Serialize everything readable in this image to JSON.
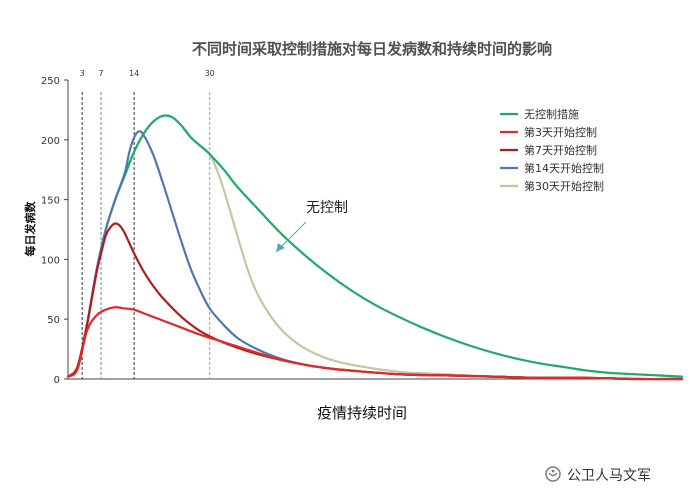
{
  "chart_data": {
    "type": "line",
    "title": "不同时间采取控制措施对每日发病数和持续时间的影响",
    "xlabel": "疫情持续时间",
    "ylabel": "每日发病数",
    "ylim": [
      0,
      250
    ],
    "yticks": [
      "0",
      "50",
      "100",
      "150",
      "200",
      "250"
    ],
    "xlim": [
      0,
      130
    ],
    "grid": false,
    "legend_position": "top-right",
    "vertical_markers": [
      {
        "label": "3",
        "x": 3,
        "color": "#333333"
      },
      {
        "label": "7",
        "x": 7,
        "color": "#5b8db5"
      },
      {
        "label": "14",
        "x": 14,
        "color": "#333333"
      },
      {
        "label": "30",
        "x": 30,
        "color": "#9aa88a"
      }
    ],
    "series": [
      {
        "name": "无控制措施",
        "color": "#1faa6a",
        "x": [
          0,
          2,
          4,
          6,
          8,
          10,
          12,
          14,
          16,
          18,
          20,
          22,
          24,
          26,
          28,
          30,
          33,
          36,
          40,
          45,
          50,
          55,
          60,
          65,
          70,
          75,
          80,
          85,
          90,
          95,
          100,
          105,
          110,
          115,
          120,
          125,
          130
        ],
        "values": [
          2,
          10,
          45,
          90,
          125,
          150,
          170,
          190,
          205,
          215,
          220,
          219,
          212,
          202,
          195,
          188,
          175,
          160,
          143,
          122,
          104,
          88,
          74,
          62,
          52,
          43,
          35,
          28,
          22,
          17,
          13,
          10,
          7,
          5,
          4,
          3,
          2
        ]
      },
      {
        "name": "第3天开始控制",
        "color": "#dc2b2b",
        "x": [
          0,
          2,
          4,
          6,
          8,
          10,
          12,
          14,
          16,
          18,
          20,
          24,
          28,
          32,
          36,
          40,
          45,
          50,
          55,
          60,
          70,
          80,
          90,
          100,
          110,
          120,
          130
        ],
        "values": [
          2,
          8,
          40,
          53,
          58,
          60,
          59,
          58,
          55,
          52,
          49,
          43,
          37,
          32,
          27,
          22,
          16,
          12,
          9,
          7,
          4,
          3,
          2,
          1,
          1,
          0,
          0
        ]
      },
      {
        "name": "第7天开始控制",
        "color": "#b01c1c",
        "x": [
          0,
          2,
          4,
          6,
          7,
          8,
          9,
          10,
          11,
          12,
          14,
          16,
          18,
          20,
          24,
          28,
          32,
          36,
          40,
          45,
          50,
          55,
          60,
          70,
          80,
          90,
          100,
          110,
          120,
          130
        ],
        "values": [
          2,
          10,
          45,
          88,
          105,
          120,
          127,
          130,
          128,
          122,
          105,
          90,
          78,
          68,
          52,
          40,
          32,
          26,
          21,
          16,
          12,
          9,
          7,
          4,
          3,
          2,
          1,
          1,
          0,
          0
        ]
      },
      {
        "name": "第14天开始控制",
        "color": "#4f77b0",
        "x": [
          0,
          2,
          4,
          6,
          8,
          10,
          12,
          13,
          14,
          15,
          16,
          18,
          20,
          22,
          24,
          26,
          28,
          30,
          33,
          36,
          40,
          45,
          50,
          55,
          60,
          70,
          80,
          90,
          100,
          110,
          120,
          130
        ],
        "values": [
          2,
          10,
          45,
          90,
          125,
          150,
          172,
          190,
          202,
          207,
          204,
          188,
          165,
          140,
          115,
          92,
          74,
          59,
          45,
          34,
          25,
          17,
          12,
          9,
          7,
          4,
          3,
          2,
          1,
          1,
          0,
          0
        ]
      },
      {
        "name": "第30天开始控制",
        "color": "#c5c79d",
        "x": [
          0,
          2,
          4,
          6,
          8,
          10,
          12,
          14,
          16,
          18,
          20,
          22,
          24,
          26,
          28,
          30,
          32,
          34,
          36,
          38,
          40,
          43,
          46,
          50,
          55,
          60,
          70,
          80,
          90,
          100,
          110,
          120,
          130
        ],
        "values": [
          2,
          10,
          45,
          90,
          125,
          150,
          170,
          190,
          205,
          215,
          220,
          219,
          212,
          202,
          195,
          188,
          170,
          145,
          118,
          92,
          72,
          52,
          38,
          26,
          17,
          12,
          6,
          4,
          2,
          1,
          1,
          0,
          0
        ]
      }
    ],
    "annotations": [
      {
        "text": "无控制",
        "points_to": "无控制措施",
        "at_x": 44
      }
    ]
  },
  "watermark": {
    "text": "公卫人马文军",
    "icon": "wechat-channel-icon"
  }
}
